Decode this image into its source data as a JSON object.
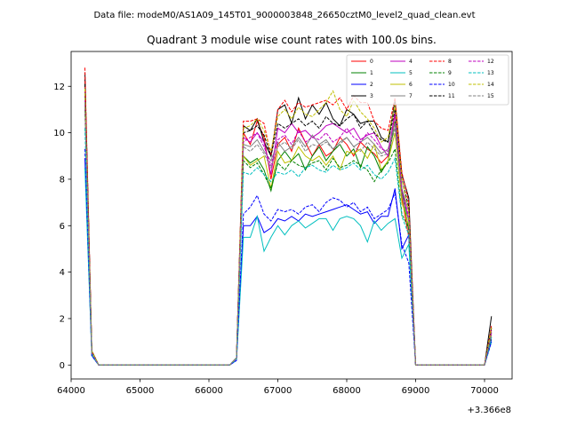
{
  "suptitle": "Data file: modeM0/AS1A09_145T01_9000003848_26650cztM0_level2_quad_clean.evt",
  "chart_data": {
    "type": "line",
    "title": "Quadrant 3 module wise count rates with 100.0s bins.",
    "xlabel": "",
    "ylabel": "",
    "x_offset_label": "+3.366e8",
    "xlim": [
      64000,
      70400
    ],
    "ylim": [
      -0.6,
      13.5
    ],
    "xticks": [
      64000,
      65000,
      66000,
      67000,
      68000,
      69000,
      70000
    ],
    "xtick_labels": [
      "64000",
      "65000",
      "66000",
      "67000",
      "68000",
      "69000",
      "70000"
    ],
    "yticks": [
      0,
      2,
      4,
      6,
      8,
      10,
      12
    ],
    "ytick_labels": [
      "0",
      "2",
      "4",
      "6",
      "8",
      "10",
      "12"
    ],
    "grid": false,
    "legend_position": "top-right",
    "legend_columns": 4,
    "x": [
      64200,
      64300,
      64400,
      64500,
      64600,
      64700,
      64800,
      64900,
      65000,
      65100,
      65200,
      65300,
      65400,
      65500,
      65600,
      65700,
      65800,
      65900,
      66000,
      66100,
      66200,
      66300,
      66400,
      66500,
      66600,
      66700,
      66800,
      66900,
      67000,
      67100,
      67200,
      67300,
      67400,
      67500,
      67600,
      67700,
      67800,
      67900,
      68000,
      68100,
      68200,
      68300,
      68400,
      68500,
      68600,
      68700,
      68800,
      68900,
      69000,
      69100,
      69200,
      69300,
      69400,
      69500,
      69600,
      69700,
      69800,
      69900,
      70000,
      70100
    ],
    "series": [
      {
        "name": "0",
        "color": "#ff0000",
        "dash": "solid",
        "values": [
          12.3,
          0.6,
          0.0,
          0.0,
          0.0,
          0.0,
          0.0,
          0.0,
          0.0,
          0.0,
          0.0,
          0.0,
          0.0,
          0.0,
          0.0,
          0.0,
          0.0,
          0.0,
          0.0,
          0.0,
          0.0,
          0.0,
          0.3,
          10.0,
          9.5,
          10.5,
          9.8,
          8.0,
          9.5,
          9.8,
          9.2,
          10.2,
          9.6,
          9.0,
          9.5,
          9.0,
          9.2,
          9.8,
          9.5,
          9.0,
          9.6,
          9.3,
          9.1,
          8.7,
          9.0,
          10.8,
          7.2,
          5.5,
          0.0,
          0.0,
          0.0,
          0.0,
          0.0,
          0.0,
          0.0,
          0.0,
          0.0,
          0.0,
          0.0,
          1.6
        ]
      },
      {
        "name": "1",
        "color": "#008000",
        "dash": "solid",
        "values": [
          11.6,
          0.5,
          0.0,
          0.0,
          0.0,
          0.0,
          0.0,
          0.0,
          0.0,
          0.0,
          0.0,
          0.0,
          0.0,
          0.0,
          0.0,
          0.0,
          0.0,
          0.0,
          0.0,
          0.0,
          0.0,
          0.0,
          0.3,
          9.0,
          8.7,
          8.9,
          8.4,
          7.5,
          8.8,
          9.2,
          8.8,
          9.1,
          8.4,
          9.0,
          9.4,
          8.8,
          9.2,
          9.5,
          9.0,
          9.3,
          8.5,
          9.4,
          9.0,
          8.3,
          8.8,
          10.5,
          7.5,
          5.8,
          0.0,
          0.0,
          0.0,
          0.0,
          0.0,
          0.0,
          0.0,
          0.0,
          0.0,
          0.0,
          0.0,
          1.4
        ]
      },
      {
        "name": "2",
        "color": "#0000ff",
        "dash": "solid",
        "values": [
          8.9,
          0.4,
          0.0,
          0.0,
          0.0,
          0.0,
          0.0,
          0.0,
          0.0,
          0.0,
          0.0,
          0.0,
          0.0,
          0.0,
          0.0,
          0.0,
          0.0,
          0.0,
          0.0,
          0.0,
          0.0,
          0.0,
          0.2,
          6.0,
          6.0,
          6.4,
          5.7,
          5.9,
          6.3,
          6.2,
          6.4,
          6.2,
          6.5,
          6.4,
          6.5,
          6.6,
          6.7,
          6.8,
          6.9,
          6.7,
          6.5,
          6.6,
          6.1,
          6.4,
          6.4,
          7.6,
          5.0,
          5.6,
          0.0,
          0.0,
          0.0,
          0.0,
          0.0,
          0.0,
          0.0,
          0.0,
          0.0,
          0.0,
          0.0,
          1.1
        ]
      },
      {
        "name": "3",
        "color": "#000000",
        "dash": "solid",
        "values": [
          12.6,
          0.6,
          0.0,
          0.0,
          0.0,
          0.0,
          0.0,
          0.0,
          0.0,
          0.0,
          0.0,
          0.0,
          0.0,
          0.0,
          0.0,
          0.0,
          0.0,
          0.0,
          0.0,
          0.0,
          0.0,
          0.0,
          0.3,
          10.3,
          10.1,
          10.6,
          9.6,
          9.0,
          11.0,
          11.2,
          10.4,
          11.5,
          10.6,
          11.2,
          10.8,
          11.3,
          10.6,
          10.3,
          11.0,
          10.8,
          10.4,
          10.5,
          10.5,
          9.8,
          9.6,
          11.4,
          8.2,
          7.2,
          0.0,
          0.0,
          0.0,
          0.0,
          0.0,
          0.0,
          0.0,
          0.0,
          0.0,
          0.0,
          0.0,
          2.1
        ]
      },
      {
        "name": "4",
        "color": "#bf00bf",
        "dash": "solid",
        "values": [
          11.8,
          0.5,
          0.0,
          0.0,
          0.0,
          0.0,
          0.0,
          0.0,
          0.0,
          0.0,
          0.0,
          0.0,
          0.0,
          0.0,
          0.0,
          0.0,
          0.0,
          0.0,
          0.0,
          0.0,
          0.0,
          0.0,
          0.3,
          9.8,
          9.6,
          10.0,
          9.6,
          8.2,
          10.2,
          10.0,
          10.4,
          10.0,
          10.1,
          9.8,
          10.0,
          10.3,
          10.4,
          10.2,
          10.0,
          10.2,
          9.7,
          9.9,
          10.0,
          9.4,
          9.0,
          10.9,
          7.6,
          6.2,
          0.0,
          0.0,
          0.0,
          0.0,
          0.0,
          0.0,
          0.0,
          0.0,
          0.0,
          0.0,
          0.0,
          1.5
        ]
      },
      {
        "name": "5",
        "color": "#00bfbf",
        "dash": "solid",
        "values": [
          8.5,
          0.4,
          0.0,
          0.0,
          0.0,
          0.0,
          0.0,
          0.0,
          0.0,
          0.0,
          0.0,
          0.0,
          0.0,
          0.0,
          0.0,
          0.0,
          0.0,
          0.0,
          0.0,
          0.0,
          0.0,
          0.0,
          0.2,
          5.5,
          5.5,
          6.4,
          4.9,
          5.5,
          6.0,
          5.6,
          6.0,
          6.2,
          5.9,
          6.1,
          6.3,
          6.3,
          5.8,
          6.3,
          6.4,
          6.3,
          6.0,
          5.3,
          6.2,
          5.8,
          6.1,
          6.3,
          4.6,
          5.2,
          0.0,
          0.0,
          0.0,
          0.0,
          0.0,
          0.0,
          0.0,
          0.0,
          0.0,
          0.0,
          0.0,
          1.0
        ]
      },
      {
        "name": "6",
        "color": "#bfbf00",
        "dash": "solid",
        "values": [
          11.2,
          0.5,
          0.0,
          0.0,
          0.0,
          0.0,
          0.0,
          0.0,
          0.0,
          0.0,
          0.0,
          0.0,
          0.0,
          0.0,
          0.0,
          0.0,
          0.0,
          0.0,
          0.0,
          0.0,
          0.0,
          0.0,
          0.3,
          9.0,
          8.6,
          8.8,
          9.0,
          7.6,
          9.2,
          8.7,
          8.8,
          9.4,
          9.0,
          8.8,
          9.0,
          8.6,
          9.0,
          8.4,
          9.2,
          9.1,
          9.3,
          8.9,
          9.5,
          8.4,
          8.8,
          10.0,
          7.0,
          6.0,
          0.0,
          0.0,
          0.0,
          0.0,
          0.0,
          0.0,
          0.0,
          0.0,
          0.0,
          0.0,
          0.0,
          1.3
        ]
      },
      {
        "name": "7",
        "color": "#808080",
        "dash": "solid",
        "values": [
          11.5,
          0.5,
          0.0,
          0.0,
          0.0,
          0.0,
          0.0,
          0.0,
          0.0,
          0.0,
          0.0,
          0.0,
          0.0,
          0.0,
          0.0,
          0.0,
          0.0,
          0.0,
          0.0,
          0.0,
          0.0,
          0.0,
          0.3,
          9.5,
          9.4,
          9.7,
          9.2,
          8.8,
          9.6,
          9.2,
          9.4,
          9.8,
          9.4,
          9.9,
          9.5,
          9.7,
          9.3,
          9.6,
          9.8,
          9.4,
          9.6,
          9.8,
          9.5,
          9.1,
          9.3,
          10.4,
          7.6,
          6.6,
          0.0,
          0.0,
          0.0,
          0.0,
          0.0,
          0.0,
          0.0,
          0.0,
          0.0,
          0.0,
          0.0,
          1.4
        ]
      },
      {
        "name": "8",
        "color": "#ff0000",
        "dash": "dashed",
        "values": [
          12.8,
          0.6,
          0.0,
          0.0,
          0.0,
          0.0,
          0.0,
          0.0,
          0.0,
          0.0,
          0.0,
          0.0,
          0.0,
          0.0,
          0.0,
          0.0,
          0.0,
          0.0,
          0.0,
          0.0,
          0.0,
          0.0,
          0.3,
          10.5,
          10.5,
          10.6,
          10.4,
          9.0,
          11.0,
          11.4,
          10.9,
          11.3,
          11.1,
          11.2,
          11.3,
          11.4,
          11.2,
          11.5,
          11.0,
          11.6,
          11.3,
          11.3,
          10.5,
          10.2,
          10.1,
          11.5,
          8.3,
          7.0,
          0.0,
          0.0,
          0.0,
          0.0,
          0.0,
          0.0,
          0.0,
          0.0,
          0.0,
          0.0,
          0.0,
          1.7
        ]
      },
      {
        "name": "9",
        "color": "#008000",
        "dash": "dashed",
        "values": [
          11.0,
          0.5,
          0.0,
          0.0,
          0.0,
          0.0,
          0.0,
          0.0,
          0.0,
          0.0,
          0.0,
          0.0,
          0.0,
          0.0,
          0.0,
          0.0,
          0.0,
          0.0,
          0.0,
          0.0,
          0.0,
          0.0,
          0.3,
          8.8,
          8.5,
          8.7,
          8.2,
          7.6,
          8.7,
          8.4,
          8.8,
          8.6,
          8.5,
          8.7,
          8.8,
          8.4,
          8.9,
          8.5,
          8.6,
          8.8,
          8.6,
          8.4,
          7.9,
          8.4,
          8.7,
          9.3,
          6.5,
          5.9,
          0.0,
          0.0,
          0.0,
          0.0,
          0.0,
          0.0,
          0.0,
          0.0,
          0.0,
          0.0,
          0.0,
          1.2
        ]
      },
      {
        "name": "10",
        "color": "#0000ff",
        "dash": "dashed",
        "values": [
          9.3,
          0.4,
          0.0,
          0.0,
          0.0,
          0.0,
          0.0,
          0.0,
          0.0,
          0.0,
          0.0,
          0.0,
          0.0,
          0.0,
          0.0,
          0.0,
          0.0,
          0.0,
          0.0,
          0.0,
          0.0,
          0.0,
          0.2,
          6.5,
          6.8,
          7.3,
          6.5,
          6.2,
          6.7,
          6.6,
          6.7,
          6.5,
          6.8,
          6.9,
          6.6,
          7.0,
          7.2,
          7.1,
          6.8,
          7.0,
          6.6,
          6.8,
          6.3,
          6.5,
          6.7,
          7.4,
          5.2,
          4.4,
          0.0,
          0.0,
          0.0,
          0.0,
          0.0,
          0.0,
          0.0,
          0.0,
          0.0,
          0.0,
          0.0,
          1.0
        ]
      },
      {
        "name": "11",
        "color": "#000000",
        "dash": "dashed",
        "values": [
          12.1,
          0.6,
          0.0,
          0.0,
          0.0,
          0.0,
          0.0,
          0.0,
          0.0,
          0.0,
          0.0,
          0.0,
          0.0,
          0.0,
          0.0,
          0.0,
          0.0,
          0.0,
          0.0,
          0.0,
          0.0,
          0.0,
          0.3,
          10.0,
          10.1,
          10.3,
          9.9,
          9.0,
          10.4,
          10.2,
          10.4,
          10.6,
          10.3,
          10.5,
          10.2,
          10.7,
          10.4,
          10.3,
          10.6,
          10.8,
          10.2,
          10.5,
          10.0,
          9.7,
          9.6,
          11.0,
          8.0,
          6.8,
          0.0,
          0.0,
          0.0,
          0.0,
          0.0,
          0.0,
          0.0,
          0.0,
          0.0,
          0.0,
          0.0,
          1.6
        ]
      },
      {
        "name": "12",
        "color": "#bf00bf",
        "dash": "dashed",
        "values": [
          11.4,
          0.5,
          0.0,
          0.0,
          0.0,
          0.0,
          0.0,
          0.0,
          0.0,
          0.0,
          0.0,
          0.0,
          0.0,
          0.0,
          0.0,
          0.0,
          0.0,
          0.0,
          0.0,
          0.0,
          0.0,
          0.0,
          0.3,
          9.6,
          9.8,
          10.0,
          9.4,
          8.6,
          9.7,
          9.9,
          9.5,
          10.1,
          9.6,
          9.8,
          9.7,
          10.0,
          9.6,
          9.8,
          10.2,
          9.8,
          9.6,
          10.0,
          9.7,
          9.3,
          9.2,
          10.8,
          7.5,
          6.4,
          0.0,
          0.0,
          0.0,
          0.0,
          0.0,
          0.0,
          0.0,
          0.0,
          0.0,
          0.0,
          0.0,
          1.4
        ]
      },
      {
        "name": "13",
        "color": "#00bfbf",
        "dash": "dashed",
        "values": [
          10.2,
          0.5,
          0.0,
          0.0,
          0.0,
          0.0,
          0.0,
          0.0,
          0.0,
          0.0,
          0.0,
          0.0,
          0.0,
          0.0,
          0.0,
          0.0,
          0.0,
          0.0,
          0.0,
          0.0,
          0.0,
          0.0,
          0.3,
          8.3,
          8.2,
          8.5,
          8.2,
          7.9,
          8.3,
          8.2,
          8.4,
          8.1,
          8.5,
          8.6,
          8.4,
          8.3,
          8.6,
          8.4,
          8.5,
          8.7,
          8.4,
          8.6,
          8.2,
          8.0,
          8.3,
          8.9,
          6.4,
          5.6,
          0.0,
          0.0,
          0.0,
          0.0,
          0.0,
          0.0,
          0.0,
          0.0,
          0.0,
          0.0,
          0.0,
          1.2
        ]
      },
      {
        "name": "14",
        "color": "#bfbf00",
        "dash": "dashed",
        "values": [
          11.9,
          0.6,
          0.0,
          0.0,
          0.0,
          0.0,
          0.0,
          0.0,
          0.0,
          0.0,
          0.0,
          0.0,
          0.0,
          0.0,
          0.0,
          0.0,
          0.0,
          0.0,
          0.0,
          0.0,
          0.0,
          0.0,
          0.3,
          10.2,
          10.3,
          10.6,
          10.1,
          9.2,
          10.7,
          11.0,
          10.6,
          11.1,
          10.8,
          10.7,
          11.0,
          11.3,
          11.8,
          11.0,
          10.7,
          11.4,
          10.9,
          10.6,
          10.2,
          9.6,
          9.8,
          11.2,
          8.0,
          6.6,
          0.0,
          0.0,
          0.0,
          0.0,
          0.0,
          0.0,
          0.0,
          0.0,
          0.0,
          0.0,
          0.0,
          1.6
        ]
      },
      {
        "name": "15",
        "color": "#808080",
        "dash": "dashed",
        "values": [
          11.3,
          0.5,
          0.0,
          0.0,
          0.0,
          0.0,
          0.0,
          0.0,
          0.0,
          0.0,
          0.0,
          0.0,
          0.0,
          0.0,
          0.0,
          0.0,
          0.0,
          0.0,
          0.0,
          0.0,
          0.0,
          0.0,
          0.3,
          9.4,
          9.2,
          9.5,
          9.1,
          8.5,
          9.4,
          9.6,
          9.3,
          9.7,
          9.2,
          9.5,
          9.4,
          9.6,
          9.3,
          9.5,
          9.8,
          9.4,
          9.2,
          9.6,
          9.3,
          9.0,
          9.1,
          10.2,
          7.3,
          6.2,
          0.0,
          0.0,
          0.0,
          0.0,
          0.0,
          0.0,
          0.0,
          0.0,
          0.0,
          0.0,
          0.0,
          1.3
        ]
      }
    ]
  }
}
